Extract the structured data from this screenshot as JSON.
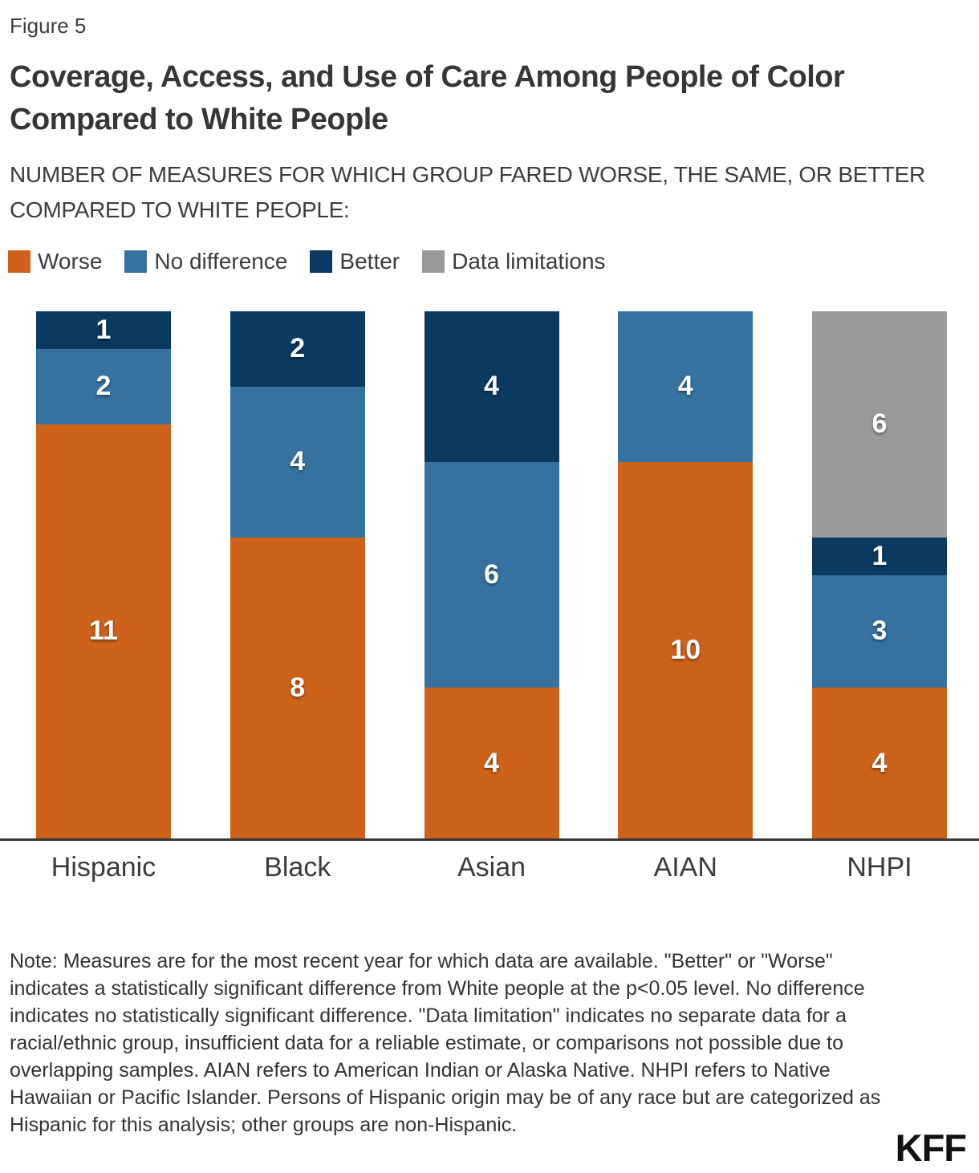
{
  "figure_label": "Figure 5",
  "title": "Coverage, Access, and Use of Care Among People of Color Compared to White People",
  "subtitle": "NUMBER OF MEASURES FOR WHICH GROUP FARED WORSE, THE SAME, OR BETTER COMPARED TO WHITE PEOPLE:",
  "colors": {
    "worse": "#CE621A",
    "no_difference": "#35729F",
    "better": "#0B3A61",
    "data_limitations": "#9A9A9A",
    "axis": "#383838"
  },
  "legend": [
    {
      "label": "Worse",
      "color": "#CE621A"
    },
    {
      "label": "No difference",
      "color": "#35729F"
    },
    {
      "label": "Better",
      "color": "#0B3A61"
    },
    {
      "label": "Data limitations",
      "color": "#9A9A9A"
    }
  ],
  "chart_data": {
    "type": "bar",
    "stacked": true,
    "grid": false,
    "legend_position": "top",
    "ylim": [
      0,
      14
    ],
    "categories": [
      "Hispanic",
      "Black",
      "Asian",
      "AIAN",
      "NHPI"
    ],
    "series": [
      {
        "name": "Worse",
        "color": "#CE621A",
        "values": [
          11,
          8,
          4,
          10,
          4
        ]
      },
      {
        "name": "No difference",
        "color": "#35729F",
        "values": [
          2,
          4,
          6,
          4,
          3
        ]
      },
      {
        "name": "Better",
        "color": "#0B3A61",
        "values": [
          1,
          2,
          4,
          0,
          1
        ]
      },
      {
        "name": "Data limitations",
        "color": "#9A9A9A",
        "values": [
          0,
          0,
          0,
          0,
          6
        ]
      }
    ]
  },
  "note": "Note: Measures are for the most recent year for which data are available. \"Better\" or \"Worse\" indicates a statistically significant difference from White people at the p<0.05 level. No difference indicates no statistically significant difference. \"Data limitation\" indicates no separate data for a racial/ethnic group, insufficient data for a reliable estimate, or comparisons not possible due to overlapping samples. AIAN refers to American Indian or Alaska Native. NHPI refers to Native Hawaiian or Pacific Islander. Persons of Hispanic origin may be of any race but are categorized as Hispanic for this analysis; other groups are non-Hispanic.",
  "logo_text": "KFF"
}
